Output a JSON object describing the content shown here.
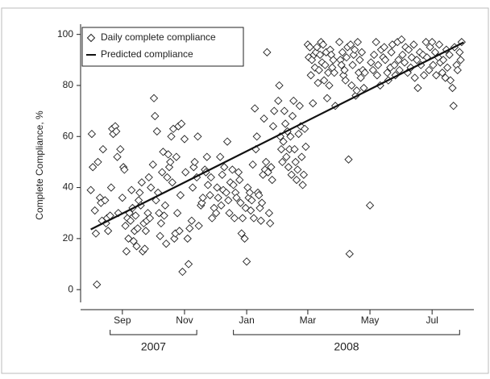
{
  "chart_data": {
    "type": "scatter",
    "ylabel": "Complete Compliance, %",
    "ylim": [
      -5,
      104
    ],
    "yticks": [
      0,
      20,
      40,
      60,
      80,
      100
    ],
    "xlim": [
      21,
      407
    ],
    "xticks": [
      {
        "value": 62,
        "label": "Sep"
      },
      {
        "value": 123,
        "label": "Nov"
      },
      {
        "value": 184,
        "label": "Jan"
      },
      {
        "value": 244,
        "label": "Mar"
      },
      {
        "value": 305,
        "label": "May"
      },
      {
        "value": 366,
        "label": "Jul"
      }
    ],
    "year_groups": [
      {
        "label": "2007",
        "from": 50,
        "to": 135
      },
      {
        "label": "2008",
        "from": 171,
        "to": 393
      }
    ],
    "legend": "upper left",
    "series": [
      {
        "name": "Daily complete compliance",
        "marker": "diamond",
        "color": "#222222",
        "x": [
          31,
          32,
          33,
          35,
          36,
          37,
          38,
          40,
          41,
          42,
          43,
          45,
          46,
          47,
          48,
          50,
          51,
          52,
          53,
          55,
          56,
          57,
          58,
          60,
          62,
          63,
          64,
          65,
          66,
          67,
          68,
          69,
          70,
          71,
          72,
          73,
          74,
          75,
          76,
          77,
          78,
          79,
          80,
          81,
          82,
          83,
          84,
          85,
          86,
          87,
          88,
          89,
          90,
          92,
          93,
          94,
          95,
          96,
          97,
          98,
          99,
          100,
          101,
          102,
          103,
          104,
          105,
          106,
          107,
          108,
          109,
          110,
          111,
          112,
          113,
          114,
          115,
          116,
          117,
          118,
          119,
          120,
          121,
          123,
          124,
          126,
          127,
          128,
          130,
          131,
          132,
          133,
          135,
          136,
          137,
          139,
          140,
          141,
          143,
          144,
          145,
          146,
          148,
          149,
          150,
          152,
          154,
          155,
          156,
          158,
          159,
          160,
          161,
          162,
          164,
          165,
          166,
          167,
          168,
          170,
          171,
          172,
          173,
          174,
          176,
          177,
          178,
          179,
          180,
          182,
          183,
          184,
          185,
          186,
          187,
          188,
          189,
          190,
          191,
          192,
          193,
          194,
          195,
          196,
          197,
          198,
          199,
          200,
          201,
          202,
          203,
          204,
          205,
          206,
          207,
          208,
          209,
          210,
          211,
          215,
          216,
          217,
          218,
          219,
          220,
          221,
          222,
          223,
          224,
          225,
          226,
          227,
          228,
          229,
          230,
          231,
          232,
          233,
          234,
          235,
          236,
          237,
          238,
          239,
          240,
          241,
          242,
          244,
          245,
          246,
          247,
          248,
          249,
          250,
          251,
          252,
          253,
          254,
          255,
          256,
          257,
          258,
          259,
          260,
          261,
          262,
          263,
          264,
          265,
          266,
          267,
          268,
          269,
          270,
          271,
          275,
          276,
          277,
          278,
          279,
          280,
          281,
          282,
          283,
          284,
          285,
          286,
          287,
          288,
          289,
          290,
          291,
          292,
          293,
          294,
          295,
          296,
          297,
          298,
          299,
          300,
          305,
          306,
          308,
          309,
          311,
          312,
          313,
          315,
          316,
          318,
          319,
          320,
          322,
          323,
          325,
          326,
          327,
          329,
          330,
          332,
          333,
          334,
          336,
          337,
          339,
          340,
          342,
          343,
          345,
          346,
          348,
          349,
          351,
          352,
          354,
          355,
          357,
          358,
          360,
          361,
          363,
          364,
          366,
          367,
          369,
          370,
          372,
          373,
          374,
          376,
          377,
          379,
          380,
          381,
          383,
          384,
          386,
          387,
          388,
          390,
          391,
          393,
          394,
          395
        ],
        "values": [
          39,
          61,
          48,
          31,
          22,
          2,
          50,
          36,
          34,
          27,
          55,
          35,
          26,
          28,
          23,
          29,
          40,
          63,
          61,
          64,
          62,
          52,
          30,
          55,
          36,
          48,
          47,
          25,
          15,
          28,
          20,
          30,
          27,
          39,
          32,
          19,
          23,
          29,
          17,
          24,
          35,
          38,
          33,
          42,
          15,
          26,
          16,
          23,
          27,
          30,
          44,
          28,
          40,
          49,
          75,
          68,
          35,
          62,
          38,
          30,
          21,
          26,
          46,
          54,
          29,
          33,
          18,
          44,
          53,
          48,
          50,
          60,
          42,
          63,
          20,
          22,
          52,
          30,
          64,
          23,
          37,
          65,
          7,
          59,
          46,
          20,
          10,
          24,
          27,
          40,
          48,
          50,
          44,
          60,
          25,
          33,
          34,
          36,
          47,
          46,
          52,
          41,
          37,
          44,
          28,
          32,
          30,
          40,
          36,
          52,
          33,
          45,
          39,
          48,
          38,
          58,
          35,
          30,
          42,
          47,
          41,
          28,
          38,
          36,
          46,
          43,
          34,
          22,
          28,
          20,
          32,
          11,
          40,
          36,
          38,
          31,
          35,
          49,
          28,
          71,
          55,
          60,
          38,
          37,
          32,
          27,
          34,
          45,
          67,
          47,
          50,
          93,
          46,
          30,
          26,
          48,
          43,
          64,
          70,
          74,
          80,
          60,
          55,
          50,
          58,
          70,
          65,
          52,
          62,
          48,
          55,
          60,
          45,
          68,
          74,
          55,
          50,
          43,
          47,
          61,
          72,
          64,
          52,
          41,
          45,
          63,
          56,
          96,
          91,
          95,
          84,
          90,
          73,
          92,
          87,
          93,
          95,
          81,
          86,
          92,
          97,
          89,
          96,
          82,
          88,
          93,
          75,
          85,
          80,
          94,
          92,
          87,
          90,
          85,
          72,
          97,
          90,
          88,
          93,
          84,
          86,
          82,
          91,
          95,
          51,
          14,
          96,
          80,
          88,
          92,
          94,
          76,
          78,
          97,
          85,
          90,
          83,
          93,
          86,
          79,
          85,
          33,
          89,
          86,
          92,
          97,
          84,
          88,
          80,
          94,
          91,
          95,
          90,
          85,
          82,
          87,
          93,
          96,
          88,
          84,
          97,
          90,
          86,
          98,
          92,
          89,
          95,
          85,
          94,
          87,
          91,
          96,
          83,
          90,
          79,
          93,
          88,
          92,
          84,
          97,
          91,
          86,
          95,
          97,
          88,
          93,
          84,
          91,
          96,
          89,
          85,
          90,
          83,
          94,
          87,
          92,
          82,
          79,
          72,
          95,
          88,
          86,
          93,
          90,
          97
        ]
      },
      {
        "name": "Predicted compliance",
        "marker": "line",
        "color": "#111111",
        "x": [
          31,
          397
        ],
        "values": [
          23.6,
          96.9
        ]
      }
    ]
  }
}
